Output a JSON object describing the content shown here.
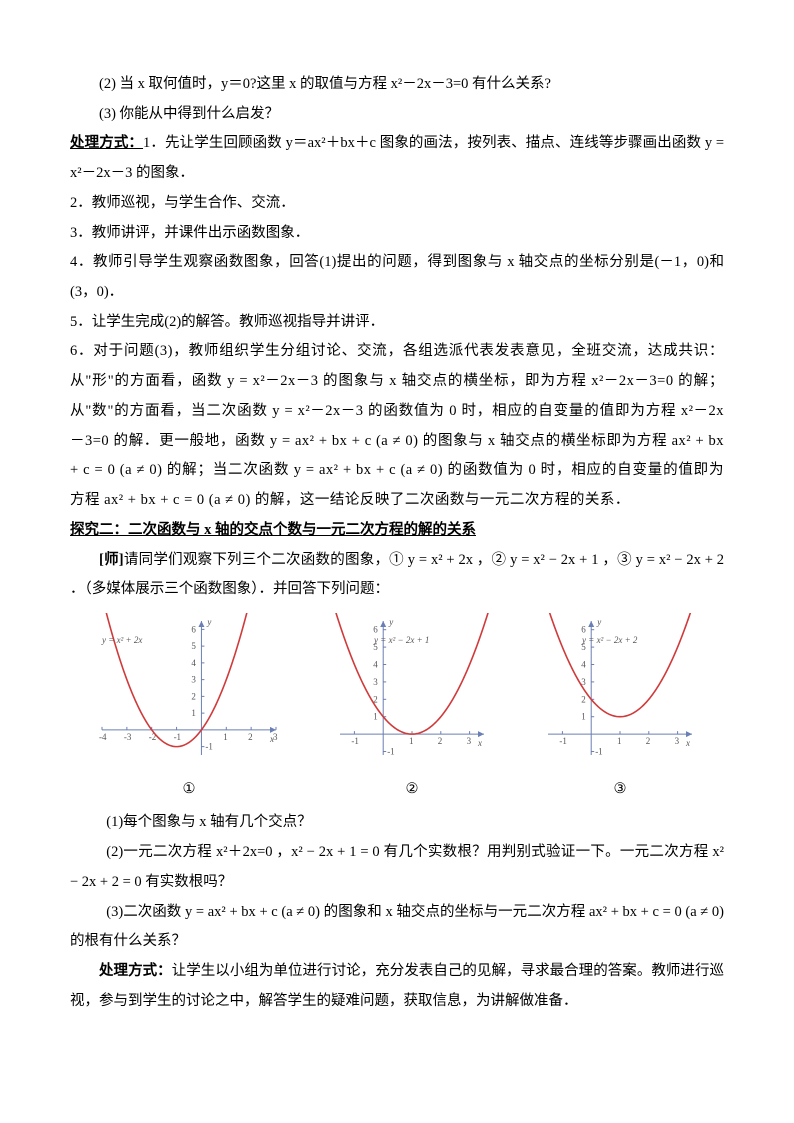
{
  "p1": "(2) 当 x 取何值时，y＝0?这里 x 的取值与方程 x²－2x－3=0 有什么关系?",
  "p2": "(3) 你能从中得到什么启发？",
  "p3a": "处理方式：",
  "p3b": "1．先让学生回顾函数 y＝ax²＋bx＋c 图象的画法，按列表、描点、连线等步骤画出函数 y = x²－2x－3 的图象．",
  "p4": "2．教师巡视，与学生合作、交流．",
  "p5": "3．教师讲评，并课件出示函数图象．",
  "p6": "4．教师引导学生观察函数图象，回答(1)提出的问题，得到图象与 x 轴交点的坐标分别是(－1，0)和(3，0)．",
  "p7": "5．让学生完成(2)的解答。教师巡视指导并讲评．",
  "p8": "6．对于问题(3)，教师组织学生分组讨论、交流，各组选派代表发表意见，全班交流，达成共识：从\"形\"的方面看，函数 y = x²－2x－3 的图象与 x 轴交点的横坐标，即为方程 x²－2x－3=0 的解；从\"数\"的方面看，当二次函数 y = x²－2x－3 的函数值为 0 时，相应的自变量的值即为方程 x²－2x－3=0 的解．更一般地，函数 y = ax² + bx + c (a ≠ 0) 的图象与 x 轴交点的横坐标即为方程 ax² + bx + c = 0 (a ≠ 0) 的解；当二次函数 y = ax² + bx + c (a ≠ 0) 的函数值为 0 时，相应的自变量的值即为方程 ax² + bx + c = 0 (a ≠ 0) 的解，这一结论反映了二次函数与一元二次方程的关系．",
  "sec2": "探究二：二次函数与 x 轴的交点个数与一元二次方程的解的关系",
  "p9a": "[师]",
  "p9b": "请同学们观察下列三个二次函数的图象，① y = x² + 2x ，② y = x² − 2x + 1 ，③ y = x² − 2x + 2 ．（多媒体展示三个函数图象）．并回答下列问题：",
  "eq1": "y = x² + 2x",
  "eq2": "y = x² − 2x + 1",
  "eq3": "y = x² − 2x + 2",
  "circ1": "①",
  "circ2": "②",
  "circ3": "③",
  "p10": "(1)每个图象与 x 轴有几个交点？",
  "p11": "(2)一元二次方程 x²＋2x=0 ，x² − 2x + 1 = 0 有几个实数根？用判别式验证一下。一元二次方程 x² − 2x + 2 = 0 有实数根吗？",
  "p12": "(3)二次函数 y = ax² + bx + c (a ≠ 0) 的图象和 x 轴交点的坐标与一元二次方程 ax² + bx + c = 0 (a ≠ 0) 的根有什么关系？",
  "p13a": "处理方式：",
  "p13b": "让学生以小组为单位进行讨论，充分发表自己的见解，寻求最合理的答案。教师进行巡视，参与到学生的讨论之中，解答学生的疑难问题，获取信息，为讲解做准备．",
  "graphs": {
    "axis_color": "#6a7fb5",
    "curve_color": "#d03a3a",
    "tick_color": "#6a7fb5",
    "width": 170,
    "height": 150,
    "g1": {
      "xmin": -4,
      "xmax": 3,
      "ymin": -1.5,
      "ymax": 6.5,
      "a": 1,
      "h": -1,
      "k": -1
    },
    "g2": {
      "xmin": -1.5,
      "xmax": 3.5,
      "ymin": -1.2,
      "ymax": 6.5,
      "a": 1,
      "h": 1,
      "k": 0
    },
    "g3": {
      "xmin": -1.5,
      "xmax": 3.5,
      "ymin": -1.2,
      "ymax": 6.5,
      "a": 1,
      "h": 1,
      "k": 1
    }
  }
}
